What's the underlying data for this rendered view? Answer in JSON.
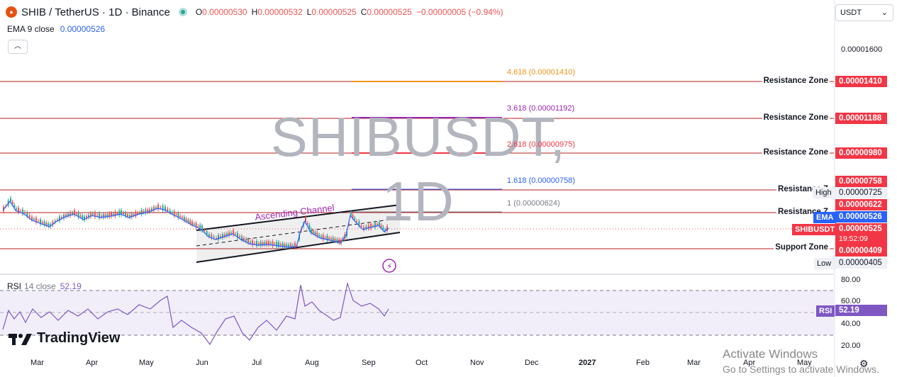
{
  "header": {
    "coin_icon": "shib-coin-icon",
    "title": "SHIB / TetherUS · 1D · Binance",
    "ohlc": [
      {
        "k": "O",
        "v": "0.00000530"
      },
      {
        "k": "H",
        "v": "0.00000532"
      },
      {
        "k": "L",
        "v": "0.00000525"
      },
      {
        "k": "C",
        "v": "0.00000525"
      }
    ],
    "change": "−0.00000005 (−0.94%)"
  },
  "ema": {
    "name": "EMA 9 close",
    "value": "0.00000526"
  },
  "currency": "USDT",
  "watermark": "SHIBUSDT, 1D",
  "price_axis": {
    "top_tick": "0.00001600"
  },
  "fib_levels": [
    {
      "label": "4.618 (0.00001410)",
      "color": "#f7931a"
    },
    {
      "label": "3.618 (0.00001192)",
      "color": "#9c27b0"
    },
    {
      "label": "2.618 (0.00000975)",
      "color": "#f23645"
    },
    {
      "label": "1.618 (0.00000758)",
      "color": "#2962ff"
    },
    {
      "label": "1 (0.00000624)",
      "color": "#787b86"
    }
  ],
  "zones": {
    "r1": "Resistance Zone",
    "r2": "Resistance Zone",
    "r3": "Resistance Zone",
    "r4": "Resistance Z",
    "r5": "Resistance Z",
    "support": "Support Zone"
  },
  "price_tags": {
    "p1410": "0.00001410",
    "p1188": "0.00001188",
    "p980": "0.00000980",
    "p758": "0.00000758",
    "high_label": "High",
    "high": "0.00000725",
    "p622": "0.00000622",
    "ema_label": "EMA",
    "ema": "0.00000526",
    "sym_label": "SHIBUSDT",
    "last": "0.00000525",
    "countdown": "19:52:09",
    "p409": "0.00000409",
    "low_label": "Low",
    "low": "0.00000405"
  },
  "annotation": "Ascending Channel",
  "rsi": {
    "name": "RSI",
    "params": "14 close",
    "value": "52.19",
    "tag_label": "RSI",
    "ticks": [
      "80.00",
      "60.00",
      "40.00",
      "20.00"
    ]
  },
  "x_axis": [
    "Mar",
    "Apr",
    "May",
    "Jun",
    "Jul",
    "Aug",
    "Sep",
    "Oct",
    "Nov",
    "Dec",
    "2027",
    "Feb",
    "Mar",
    "Apr",
    "May"
  ],
  "branding": {
    "logo": "TradingView"
  },
  "os_notice": {
    "line1": "Activate Windows",
    "line2": "Go to Settings to activate Windows."
  },
  "colors": {
    "up": "#26a69a",
    "down": "#ef5350",
    "ema": "#2962ff",
    "rsi": "#7e57c2",
    "zone": "#b71c1c"
  }
}
